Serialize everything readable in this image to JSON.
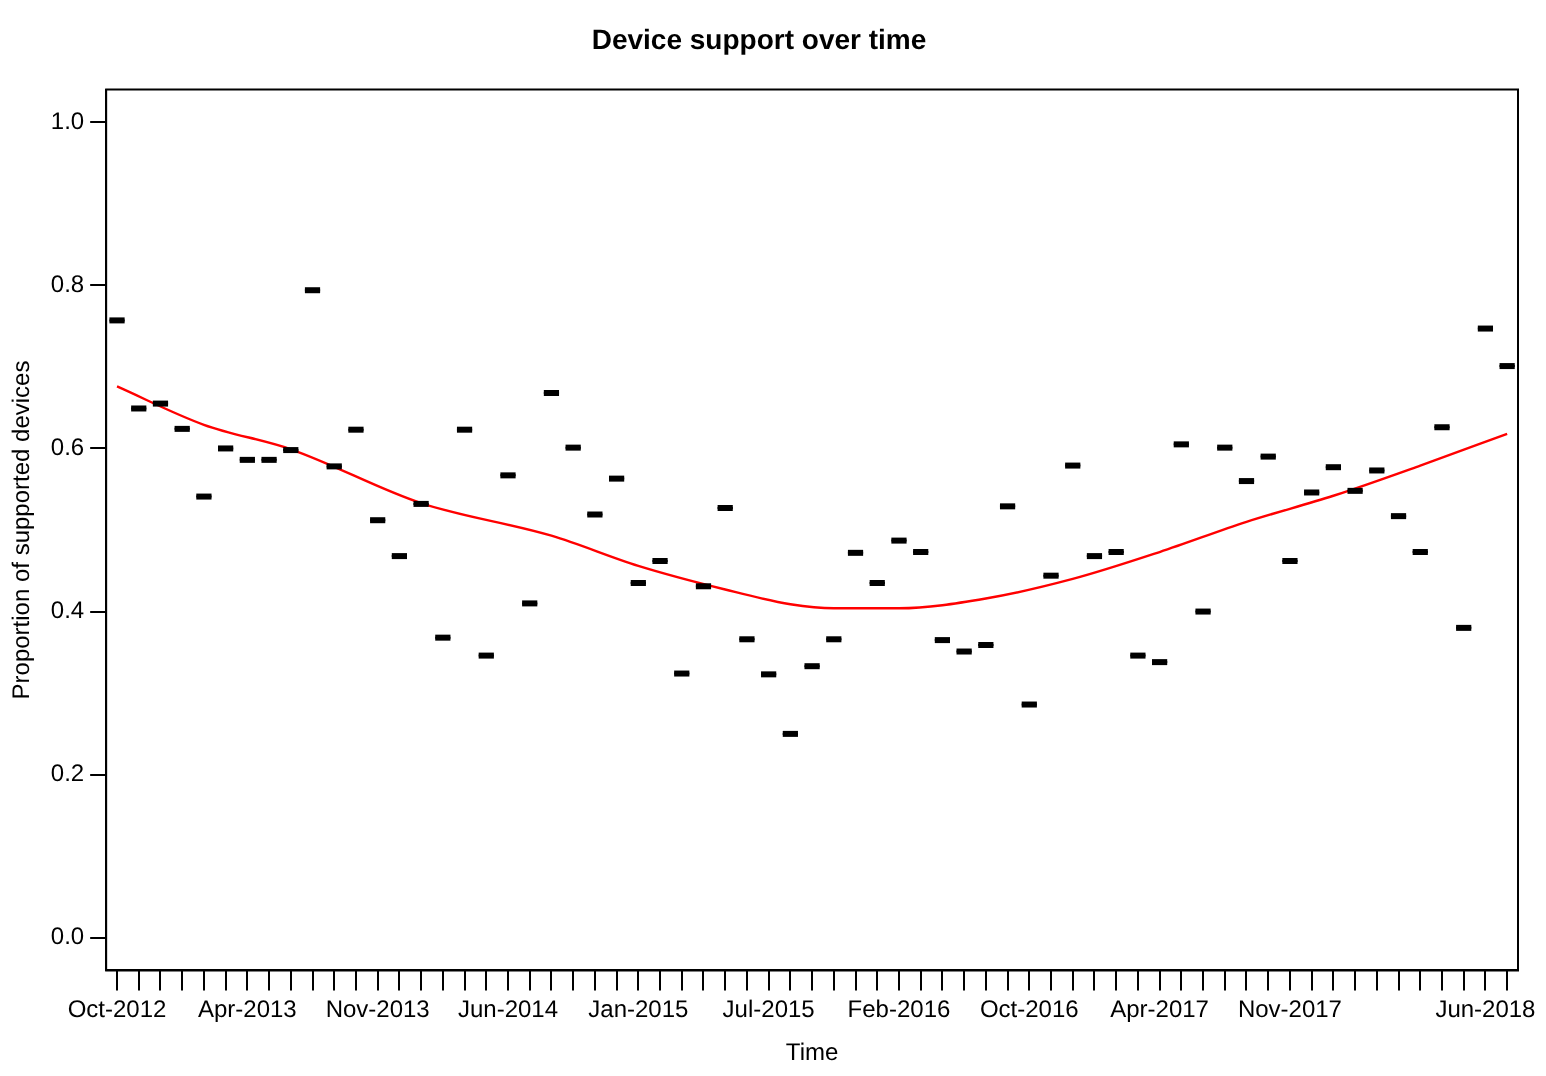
{
  "chart_data": {
    "type": "box",
    "title": "Device support over time",
    "xlabel": "Time",
    "ylabel": "Proportion of supported devices",
    "categories": [
      "Oct-2012",
      null,
      null,
      null,
      null,
      null,
      "Apr-2013",
      null,
      null,
      null,
      null,
      null,
      "Nov-2013",
      null,
      null,
      null,
      null,
      null,
      "Jun-2014",
      null,
      null,
      null,
      null,
      null,
      "Jan-2015",
      null,
      null,
      null,
      null,
      null,
      "Jul-2015",
      null,
      null,
      null,
      null,
      null,
      "Feb-2016",
      null,
      null,
      null,
      null,
      null,
      "Oct-2016",
      null,
      null,
      null,
      null,
      null,
      "Apr-2017",
      null,
      null,
      null,
      null,
      null,
      "Nov-2017",
      null,
      null,
      null,
      null,
      null,
      null,
      null,
      null,
      "Jun-2018",
      null
    ],
    "series": [
      {
        "color": "#000000",
        "boxes": [
          {
            "low": 0.757,
            "q1": 0.757,
            "median": 0.757,
            "q3": 0.757,
            "high": 0.757
          },
          {
            "low": 0.649,
            "q1": 0.649,
            "median": 0.649,
            "q3": 0.649,
            "high": 0.649
          },
          {
            "low": 0.655,
            "q1": 0.655,
            "median": 0.655,
            "q3": 0.655,
            "high": 0.655
          },
          {
            "low": 0.624,
            "q1": 0.624,
            "median": 0.624,
            "q3": 0.624,
            "high": 0.624
          },
          {
            "low": 0.541,
            "q1": 0.541,
            "median": 0.541,
            "q3": 0.541,
            "high": 0.541
          },
          {
            "low": 0.6,
            "q1": 0.6,
            "median": 0.6,
            "q3": 0.6,
            "high": 0.6
          },
          {
            "low": 0.586,
            "q1": 0.586,
            "median": 0.586,
            "q3": 0.586,
            "high": 0.586
          },
          {
            "low": 0.586,
            "q1": 0.586,
            "median": 0.586,
            "q3": 0.586,
            "high": 0.586
          },
          {
            "low": 0.598,
            "q1": 0.598,
            "median": 0.598,
            "q3": 0.598,
            "high": 0.598
          },
          {
            "low": 0.794,
            "q1": 0.794,
            "median": 0.794,
            "q3": 0.794,
            "high": 0.794
          },
          {
            "low": 0.578,
            "q1": 0.578,
            "median": 0.578,
            "q3": 0.578,
            "high": 0.578
          },
          {
            "low": 0.623,
            "q1": 0.623,
            "median": 0.623,
            "q3": 0.623,
            "high": 0.623
          },
          {
            "low": 0.512,
            "q1": 0.512,
            "median": 0.512,
            "q3": 0.512,
            "high": 0.512
          },
          {
            "low": 0.468,
            "q1": 0.468,
            "median": 0.468,
            "q3": 0.468,
            "high": 0.468
          },
          {
            "low": 0.532,
            "q1": 0.532,
            "median": 0.532,
            "q3": 0.532,
            "high": 0.532
          },
          {
            "low": 0.368,
            "q1": 0.368,
            "median": 0.368,
            "q3": 0.368,
            "high": 0.368
          },
          {
            "low": 0.623,
            "q1": 0.623,
            "median": 0.623,
            "q3": 0.623,
            "high": 0.623
          },
          {
            "low": 0.346,
            "q1": 0.346,
            "median": 0.346,
            "q3": 0.346,
            "high": 0.346
          },
          {
            "low": 0.567,
            "q1": 0.567,
            "median": 0.567,
            "q3": 0.567,
            "high": 0.567
          },
          {
            "low": 0.41,
            "q1": 0.41,
            "median": 0.41,
            "q3": 0.41,
            "high": 0.41
          },
          {
            "low": 0.668,
            "q1": 0.668,
            "median": 0.668,
            "q3": 0.668,
            "high": 0.668
          },
          {
            "low": 0.601,
            "q1": 0.601,
            "median": 0.601,
            "q3": 0.601,
            "high": 0.601
          },
          {
            "low": 0.519,
            "q1": 0.519,
            "median": 0.519,
            "q3": 0.519,
            "high": 0.519
          },
          {
            "low": 0.563,
            "q1": 0.563,
            "median": 0.563,
            "q3": 0.563,
            "high": 0.563
          },
          {
            "low": 0.435,
            "q1": 0.435,
            "median": 0.435,
            "q3": 0.435,
            "high": 0.435
          },
          {
            "low": 0.462,
            "q1": 0.462,
            "median": 0.462,
            "q3": 0.462,
            "high": 0.462
          },
          {
            "low": 0.324,
            "q1": 0.324,
            "median": 0.324,
            "q3": 0.324,
            "high": 0.324
          },
          {
            "low": 0.431,
            "q1": 0.431,
            "median": 0.431,
            "q3": 0.431,
            "high": 0.431
          },
          {
            "low": 0.527,
            "q1": 0.527,
            "median": 0.527,
            "q3": 0.527,
            "high": 0.527
          },
          {
            "low": 0.366,
            "q1": 0.366,
            "median": 0.366,
            "q3": 0.366,
            "high": 0.366
          },
          {
            "low": 0.323,
            "q1": 0.323,
            "median": 0.323,
            "q3": 0.323,
            "high": 0.323
          },
          {
            "low": 0.25,
            "q1": 0.25,
            "median": 0.25,
            "q3": 0.25,
            "high": 0.25
          },
          {
            "low": 0.333,
            "q1": 0.333,
            "median": 0.333,
            "q3": 0.333,
            "high": 0.333
          },
          {
            "low": 0.366,
            "q1": 0.366,
            "median": 0.366,
            "q3": 0.366,
            "high": 0.366
          },
          {
            "low": 0.472,
            "q1": 0.472,
            "median": 0.472,
            "q3": 0.472,
            "high": 0.472
          },
          {
            "low": 0.435,
            "q1": 0.435,
            "median": 0.435,
            "q3": 0.435,
            "high": 0.435
          },
          {
            "low": 0.487,
            "q1": 0.487,
            "median": 0.487,
            "q3": 0.487,
            "high": 0.487
          },
          {
            "low": 0.473,
            "q1": 0.473,
            "median": 0.473,
            "q3": 0.473,
            "high": 0.473
          },
          {
            "low": 0.365,
            "q1": 0.365,
            "median": 0.365,
            "q3": 0.365,
            "high": 0.365
          },
          {
            "low": 0.351,
            "q1": 0.351,
            "median": 0.351,
            "q3": 0.351,
            "high": 0.351
          },
          {
            "low": 0.359,
            "q1": 0.359,
            "median": 0.359,
            "q3": 0.359,
            "high": 0.359
          },
          {
            "low": 0.529,
            "q1": 0.529,
            "median": 0.529,
            "q3": 0.529,
            "high": 0.529
          },
          {
            "low": 0.286,
            "q1": 0.286,
            "median": 0.286,
            "q3": 0.286,
            "high": 0.286
          },
          {
            "low": 0.444,
            "q1": 0.444,
            "median": 0.444,
            "q3": 0.444,
            "high": 0.444
          },
          {
            "low": 0.579,
            "q1": 0.579,
            "median": 0.579,
            "q3": 0.579,
            "high": 0.579
          },
          {
            "low": 0.468,
            "q1": 0.468,
            "median": 0.468,
            "q3": 0.468,
            "high": 0.468
          },
          {
            "low": 0.473,
            "q1": 0.473,
            "median": 0.473,
            "q3": 0.473,
            "high": 0.473
          },
          {
            "low": 0.346,
            "q1": 0.346,
            "median": 0.346,
            "q3": 0.346,
            "high": 0.346
          },
          {
            "low": 0.338,
            "q1": 0.338,
            "median": 0.338,
            "q3": 0.338,
            "high": 0.338
          },
          {
            "low": 0.605,
            "q1": 0.605,
            "median": 0.605,
            "q3": 0.605,
            "high": 0.605
          },
          {
            "low": 0.4,
            "q1": 0.4,
            "median": 0.4,
            "q3": 0.4,
            "high": 0.4
          },
          {
            "low": 0.601,
            "q1": 0.601,
            "median": 0.601,
            "q3": 0.601,
            "high": 0.601
          },
          {
            "low": 0.56,
            "q1": 0.56,
            "median": 0.56,
            "q3": 0.56,
            "high": 0.56
          },
          {
            "low": 0.59,
            "q1": 0.59,
            "median": 0.59,
            "q3": 0.59,
            "high": 0.59
          },
          {
            "low": 0.462,
            "q1": 0.462,
            "median": 0.462,
            "q3": 0.462,
            "high": 0.462
          },
          {
            "low": 0.546,
            "q1": 0.546,
            "median": 0.546,
            "q3": 0.546,
            "high": 0.546
          },
          {
            "low": 0.577,
            "q1": 0.577,
            "median": 0.577,
            "q3": 0.577,
            "high": 0.577
          },
          {
            "low": 0.548,
            "q1": 0.548,
            "median": 0.548,
            "q3": 0.548,
            "high": 0.548
          },
          {
            "low": 0.573,
            "q1": 0.573,
            "median": 0.573,
            "q3": 0.573,
            "high": 0.573
          },
          {
            "low": 0.517,
            "q1": 0.517,
            "median": 0.517,
            "q3": 0.517,
            "high": 0.517
          },
          {
            "low": 0.473,
            "q1": 0.473,
            "median": 0.473,
            "q3": 0.473,
            "high": 0.473
          },
          {
            "low": 0.626,
            "q1": 0.626,
            "median": 0.626,
            "q3": 0.626,
            "high": 0.626
          },
          {
            "low": 0.38,
            "q1": 0.38,
            "median": 0.38,
            "q3": 0.38,
            "high": 0.38
          },
          {
            "low": 0.747,
            "q1": 0.747,
            "median": 0.747,
            "q3": 0.747,
            "high": 0.747
          },
          {
            "low": 0.701,
            "q1": 0.701,
            "median": 0.701,
            "q3": 0.701,
            "high": 0.701
          }
        ]
      },
      {
        "type": "line",
        "color": "#ff0000",
        "values": [
          0.676,
          null,
          null,
          null,
          0.629,
          null,
          null,
          null,
          0.599,
          null,
          null,
          null,
          null,
          null,
          0.533,
          null,
          null,
          null,
          null,
          null,
          0.493,
          null,
          null,
          null,
          0.456,
          null,
          null,
          null,
          0.427,
          null,
          null,
          0.409,
          null,
          0.404,
          null,
          null,
          0.404,
          null,
          null,
          null,
          0.416,
          null,
          null,
          null,
          0.44,
          null,
          null,
          null,
          0.473,
          null,
          null,
          null,
          0.51,
          null,
          null,
          null,
          0.542,
          null,
          null,
          null,
          0.579,
          null,
          null,
          null,
          0.618
        ]
      }
    ],
    "ylim": [
      -0.04,
      1.04
    ],
    "yticks": [
      {
        "value": 0,
        "label": "0.0"
      },
      {
        "value": 0.2,
        "label": "0.2"
      },
      {
        "value": 0.4,
        "label": "0.4"
      },
      {
        "value": 0.6,
        "label": "0.6"
      },
      {
        "value": 0.8,
        "label": "0.8"
      },
      {
        "value": 1,
        "label": "1.0"
      }
    ],
    "grid": false,
    "legend": false
  }
}
